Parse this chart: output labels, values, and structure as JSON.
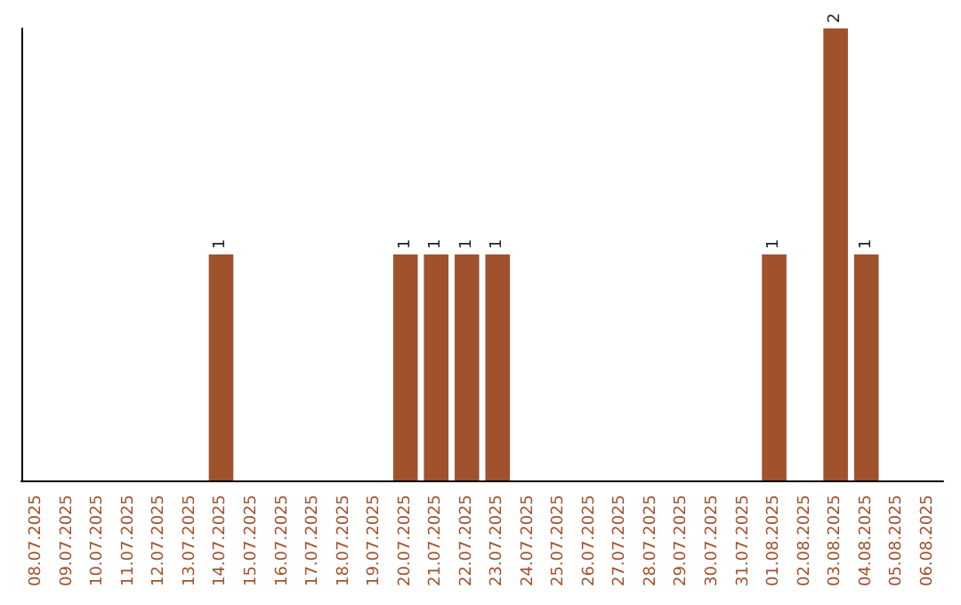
{
  "chart_data": {
    "type": "bar",
    "categories": [
      "08.07.2025",
      "09.07.2025",
      "10.07.2025",
      "11.07.2025",
      "12.07.2025",
      "13.07.2025",
      "14.07.2025",
      "15.07.2025",
      "16.07.2025",
      "17.07.2025",
      "18.07.2025",
      "19.07.2025",
      "20.07.2025",
      "21.07.2025",
      "22.07.2025",
      "23.07.2025",
      "24.07.2025",
      "25.07.2025",
      "26.07.2025",
      "27.07.2025",
      "28.07.2025",
      "29.07.2025",
      "30.07.2025",
      "31.07.2025",
      "01.08.2025",
      "02.08.2025",
      "03.08.2025",
      "04.08.2025",
      "05.08.2025",
      "06.08.2025"
    ],
    "values": [
      0,
      0,
      0,
      0,
      0,
      0,
      1,
      0,
      0,
      0,
      0,
      0,
      1,
      1,
      1,
      1,
      0,
      0,
      0,
      0,
      0,
      0,
      0,
      0,
      1,
      0,
      2,
      1,
      0,
      0
    ],
    "value_labels": [
      null,
      null,
      null,
      null,
      null,
      null,
      "1",
      null,
      null,
      null,
      null,
      null,
      "1",
      "1",
      "1",
      "1",
      null,
      null,
      null,
      null,
      null,
      null,
      null,
      null,
      "1",
      null,
      "2",
      "1",
      null,
      null
    ],
    "color": "#a0522d",
    "grid": false,
    "tick_labels": "x"
  }
}
